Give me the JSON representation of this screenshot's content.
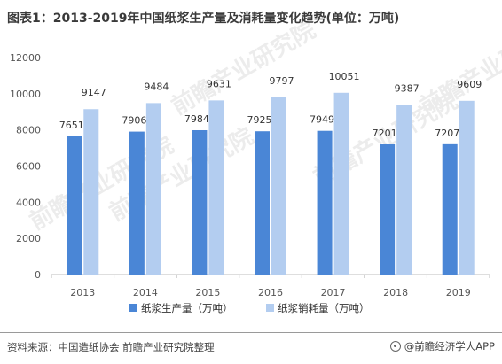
{
  "title": "图表1：2013-2019年中国纸浆生产量及消耗量变化趋势(单位：万吨)",
  "source": "资料来源：中国造纸协会 前瞻产业研究院整理",
  "brand": "@前瞻经济学人APP",
  "watermark": "前瞻产业研究院",
  "chart_data": {
    "type": "bar",
    "categories": [
      "2013",
      "2014",
      "2015",
      "2016",
      "2017",
      "2018",
      "2019"
    ],
    "series": [
      {
        "name": "纸浆生产量（万吨）",
        "values": [
          7651,
          7906,
          7984,
          7925,
          7949,
          7201,
          7207
        ],
        "color": "#4a86d6"
      },
      {
        "name": "纸浆销耗量（万吨）",
        "values": [
          9147,
          9484,
          9631,
          9797,
          10051,
          9387,
          9609
        ],
        "color": "#b3cdf0"
      }
    ],
    "yticks": [
      0,
      2000,
      4000,
      6000,
      8000,
      10000,
      12000
    ],
    "ylim": [
      0,
      12000
    ],
    "grid": false,
    "legend": "bottom"
  }
}
